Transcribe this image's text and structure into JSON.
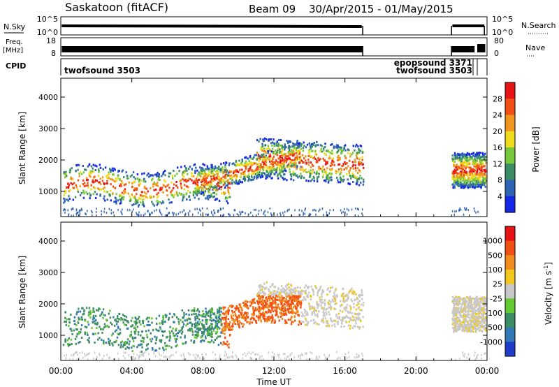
{
  "header": {
    "station": "Saskatoon (fitACF)",
    "beam_label": "Beam 09",
    "date_range": "30/Apr/2015 - 01/May/2015"
  },
  "strip_panels": {
    "nsky": {
      "label": "N.Sky",
      "ticks": [
        "10^5",
        "10^0"
      ],
      "right_label": "N.Search",
      "right_ticks": [
        "10^5",
        "10^0"
      ]
    },
    "freq": {
      "label_line1": "Freq.",
      "label_line2": "[MHz]",
      "ticks": [
        "18",
        "8"
      ],
      "right_label": "Nave",
      "right_ticks": [
        "80",
        "0"
      ]
    },
    "cpid": {
      "label": "CPID",
      "entries": [
        "twofsound 3503",
        "epopsound 3371",
        "twofsound 3503"
      ]
    }
  },
  "chart_data": [
    {
      "type": "heatmap",
      "quantity": "Power",
      "xlabel": "",
      "ylabel": "Slant Range [km]",
      "y_ticks": [
        "1000",
        "2000",
        "3000",
        "4000"
      ],
      "ylim": [
        200,
        4600
      ],
      "xlim_hours": [
        0,
        24
      ],
      "x_ticks": [
        "00:00",
        "04:00",
        "08:00",
        "12:00",
        "16:00",
        "20:00",
        "00:00"
      ],
      "colorbar": {
        "label": "Power [dB]",
        "ticks": [
          "4",
          "8",
          "12",
          "16",
          "20",
          "24",
          "28"
        ],
        "colors": [
          "#1428e6",
          "#2f63b4",
          "#3c8c64",
          "#78c83c",
          "#f0dc1e",
          "#f0961e",
          "#f05014",
          "#e61414"
        ]
      }
    },
    {
      "type": "heatmap",
      "quantity": "Velocity",
      "xlabel": "Time UT",
      "ylabel": "Slant Range [km]",
      "y_ticks": [
        "1000",
        "2000",
        "3000",
        "4000"
      ],
      "ylim": [
        200,
        4600
      ],
      "xlim_hours": [
        0,
        24
      ],
      "x_ticks": [
        "00:00",
        "04:00",
        "08:00",
        "12:00",
        "16:00",
        "20:00",
        "00:00"
      ],
      "colorbar": {
        "label": "Velocity [m s",
        "label_sup": "-1",
        "label_end": "]",
        "ticks": [
          "1000",
          "500",
          "100",
          "25",
          "-25",
          "-100",
          "-500",
          "-1000"
        ],
        "colors": [
          "#1e3cc8",
          "#3278b4",
          "#3c8c64",
          "#64c832",
          "#c8c8c8",
          "#f0c81e",
          "#f08c1e",
          "#f05014",
          "#e61414"
        ]
      }
    }
  ],
  "data_gap_hours": [
    17.0,
    22.0
  ]
}
